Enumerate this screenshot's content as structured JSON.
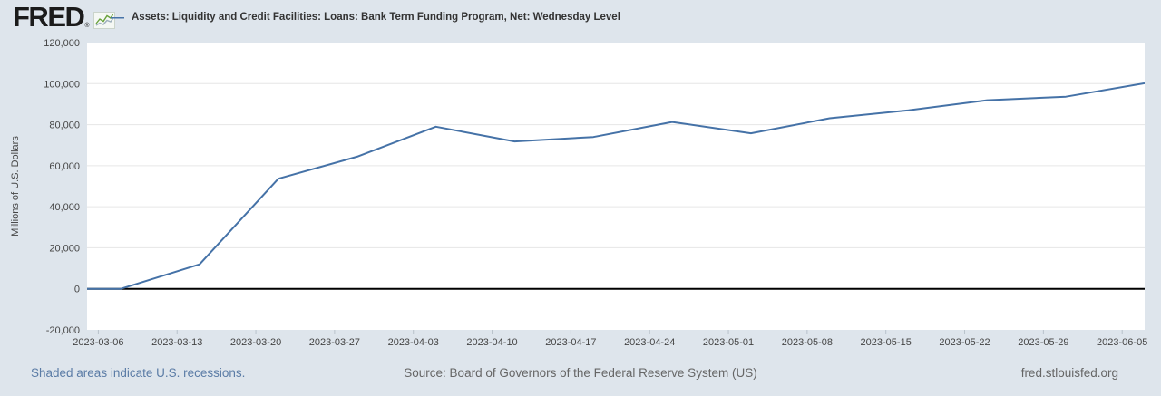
{
  "header": {
    "brand": "FRED",
    "brand_registered": "®",
    "legend": {
      "dash": "—"
    }
  },
  "chart_data": {
    "type": "line",
    "title": "",
    "xlabel": "",
    "ylabel": "Millions of U.S. Dollars",
    "xlim": [
      "2023-03-05",
      "2023-06-07"
    ],
    "ylim": [
      -20000,
      120000
    ],
    "grid": "horizontal",
    "zero_line": true,
    "legend_position": "top",
    "series": [
      {
        "name": "Assets: Liquidity and Credit Facilities: Loans: Bank Term Funding Program, Net: Wednesday Level",
        "color": "#4572a7",
        "points": [
          {
            "date": "2023-03-01",
            "value": 0
          },
          {
            "date": "2023-03-08",
            "value": 0
          },
          {
            "date": "2023-03-15",
            "value": 11943
          },
          {
            "date": "2023-03-22",
            "value": 53669
          },
          {
            "date": "2023-03-29",
            "value": 64403
          },
          {
            "date": "2023-04-05",
            "value": 79021
          },
          {
            "date": "2023-04-12",
            "value": 71837
          },
          {
            "date": "2023-04-19",
            "value": 73982
          },
          {
            "date": "2023-04-26",
            "value": 81327
          },
          {
            "date": "2023-05-03",
            "value": 75778
          },
          {
            "date": "2023-05-10",
            "value": 83101
          },
          {
            "date": "2023-05-17",
            "value": 87006
          },
          {
            "date": "2023-05-24",
            "value": 91907
          },
          {
            "date": "2023-05-31",
            "value": 93615
          },
          {
            "date": "2023-06-07",
            "value": 100161
          }
        ]
      }
    ],
    "x_tick_labels": [
      "2023-03-06",
      "2023-03-13",
      "2023-03-20",
      "2023-03-27",
      "2023-04-03",
      "2023-04-10",
      "2023-04-17",
      "2023-04-24",
      "2023-05-01",
      "2023-05-08",
      "2023-05-15",
      "2023-05-22",
      "2023-05-29",
      "2023-06-05"
    ],
    "y_ticks": [
      -20000,
      0,
      20000,
      40000,
      60000,
      80000,
      100000,
      120000
    ],
    "y_tick_labels": [
      "-20,000",
      "0",
      "20,000",
      "40,000",
      "60,000",
      "80,000",
      "100,000",
      "120,000"
    ]
  },
  "footer": {
    "recessions_note": "Shaded areas indicate U.S. recessions.",
    "source": "Source: Board of Governors of the Federal Reserve System (US)",
    "site": "fred.stlouisfed.org"
  },
  "colors": {
    "background": "#dee5ec",
    "plot-background": "#ffffff",
    "series-line": "#4572a7",
    "grid-line": "#e6e6e6",
    "zero-line": "#000000",
    "tick-mark": "#b9c2cb",
    "axis-text": "#454545",
    "legend-text": "#333333",
    "brand-text": "#1b1b1b",
    "link-text": "#5b7ca6",
    "footer-text": "#666666",
    "icon-green": "#69a23c",
    "icon-gray": "#9fb0bd"
  }
}
